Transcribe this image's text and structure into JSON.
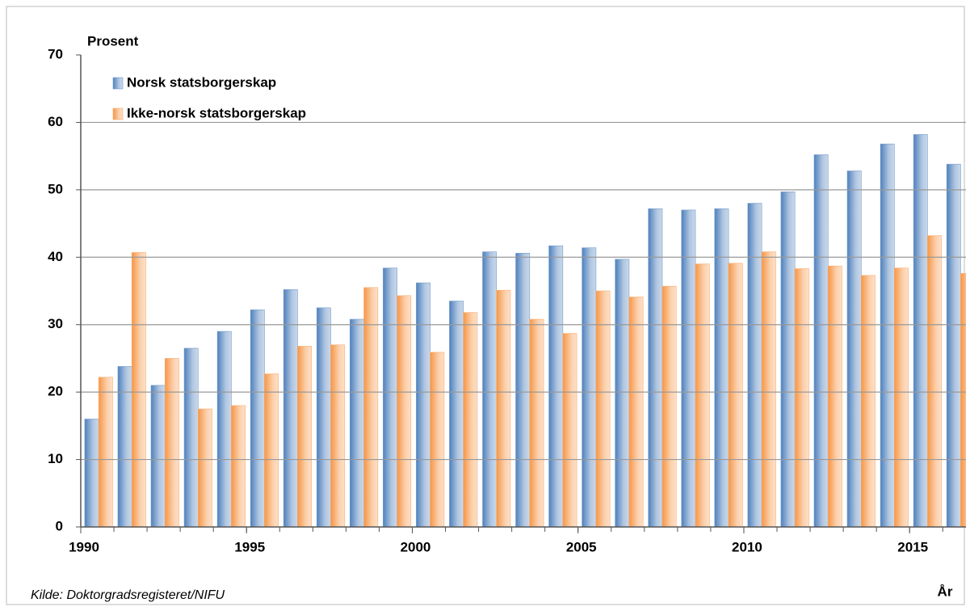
{
  "chart_data": {
    "type": "bar",
    "y_label": "Prosent",
    "x_label": "År",
    "source": "Kilde:  Doktorgradsregisteret/NIFU",
    "x": [
      1990,
      1991,
      1992,
      1993,
      1994,
      1995,
      1996,
      1997,
      1998,
      1999,
      2000,
      2001,
      2002,
      2003,
      2004,
      2005,
      2006,
      2007,
      2008,
      2009,
      2010,
      2011,
      2012,
      2013,
      2014,
      2015,
      2016
    ],
    "series": [
      {
        "name": "Norsk statsborgerskap",
        "color": "#4f81bd",
        "values": [
          16,
          23.8,
          21,
          26.5,
          29,
          32.2,
          35.2,
          32.5,
          30.8,
          38.4,
          36.2,
          33.5,
          40.8,
          40.6,
          41.7,
          41.4,
          39.7,
          47.2,
          47,
          47.2,
          48,
          49.7,
          55.2,
          52.8,
          56.8,
          58.2,
          53.8
        ]
      },
      {
        "name": "Ikke-norsk statsborgerskap",
        "color": "#f79646",
        "values": [
          22.2,
          40.7,
          25,
          17.5,
          18,
          22.7,
          26.8,
          27,
          35.5,
          34.3,
          25.9,
          31.8,
          35.1,
          30.8,
          28.7,
          35,
          34.1,
          35.7,
          39,
          39.1,
          40.8,
          38.3,
          38.7,
          37.3,
          38.4,
          43.2,
          37.6
        ]
      }
    ],
    "xlim": [
      1990,
      2016.7
    ],
    "xticks": [
      1990,
      1995,
      2000,
      2005,
      2010,
      2015
    ],
    "ylim": [
      0,
      70
    ],
    "yticks": [
      0,
      10,
      20,
      30,
      40,
      50,
      60,
      70
    ],
    "grid": true,
    "legend": "top-left"
  }
}
